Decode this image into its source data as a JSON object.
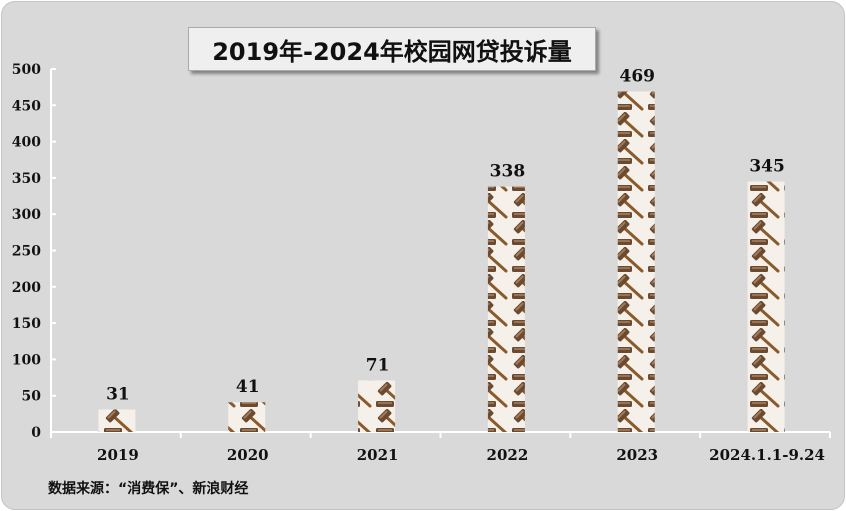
{
  "chart_data": {
    "type": "bar",
    "title": "2019年-2024年校园网贷投诉量",
    "categories": [
      "2019",
      "2020",
      "2021",
      "2022",
      "2023",
      "2024.1.1-9.24"
    ],
    "values": [
      31,
      41,
      71,
      338,
      469,
      345
    ],
    "ylim": [
      0,
      500
    ],
    "yticks": [
      "0",
      "50",
      "100",
      "150",
      "200",
      "250",
      "300",
      "350",
      "400",
      "450",
      "500"
    ],
    "xlabel": "",
    "ylabel": "",
    "grid": false,
    "legend": "none",
    "mark": "gavel-icon"
  },
  "source": "数据来源：“消费保”、新浪财经",
  "colors": {
    "background": "#d9d9d9",
    "axis": "#ffffff",
    "gavel_handle": "#8a5a2b",
    "gavel_head": "#6b4a32"
  }
}
